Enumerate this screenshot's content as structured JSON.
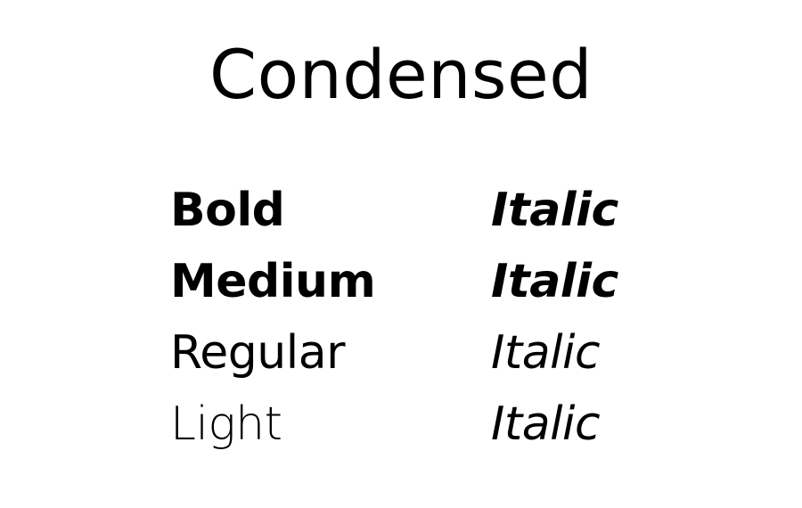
{
  "title": "Condensed",
  "weights": [
    {
      "name": "Bold",
      "italic": "Italic"
    },
    {
      "name": "Medium",
      "italic": "Italic"
    },
    {
      "name": "Regular",
      "italic": "Italic"
    },
    {
      "name": "Light",
      "italic": "Italic"
    }
  ],
  "colors": {
    "background": "#ffffff",
    "text": "#000000"
  }
}
